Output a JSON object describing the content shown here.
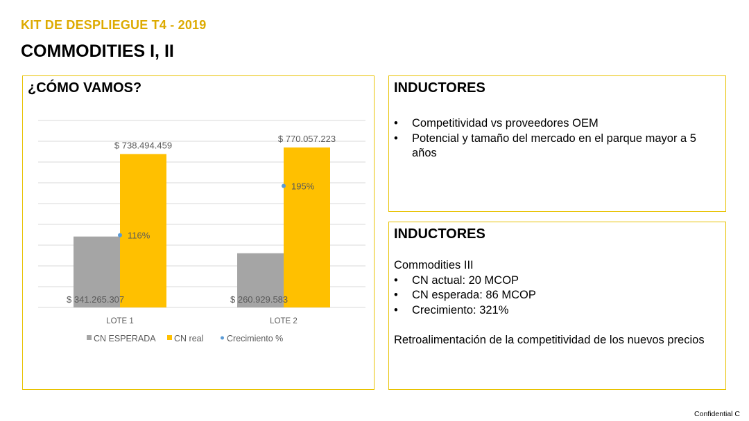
{
  "header": {
    "kit_title": "KIT DE DESPLIEGUE T4 - 2019",
    "page_title": "COMMODITIES I, II"
  },
  "left_panel": {
    "heading": "¿CÓMO VAMOS?"
  },
  "inductores_1": {
    "heading": "INDUCTORES",
    "bullets": [
      "Competitividad vs proveedores OEM",
      "Potencial y tamaño del mercado en el parque mayor a 5 años"
    ]
  },
  "inductores_2": {
    "heading": "INDUCTORES",
    "subtitle": "Commodities III",
    "bullets": [
      "CN actual: 20 MCOP",
      "CN esperada: 86 MCOP",
      "Crecimiento: 321%"
    ],
    "note": "Retroalimentación de la competitividad de los nuevos precios"
  },
  "footer": {
    "confidential": "Confidential C"
  },
  "colors": {
    "accent": "#DDAA00",
    "border": "#E8C200",
    "bar_esperada": "#A5A5A5",
    "bar_real": "#FFC000",
    "growth_dot": "#5B9BD5",
    "grid": "#D9D9D9",
    "label_text": "#595959"
  },
  "chart_data": {
    "type": "bar",
    "categories": [
      "LOTE 1",
      "LOTE 2"
    ],
    "series": [
      {
        "name": "CN ESPERADA",
        "values": [
          341265307,
          260929583
        ],
        "labels": [
          "$ 341.265.307",
          "$ 260.929.583"
        ]
      },
      {
        "name": "CN real",
        "values": [
          738494459,
          770057223
        ],
        "labels": [
          "$ 738.494.459",
          "$ 770.057.223"
        ]
      },
      {
        "name": "Crecimiento %",
        "type": "scatter",
        "values": [
          116,
          195
        ],
        "labels": [
          "116%",
          "195%"
        ]
      }
    ],
    "ylim": [
      0,
      900000000
    ],
    "y2lim": [
      0,
      300
    ],
    "gridlines": true,
    "legend_position": "bottom"
  }
}
